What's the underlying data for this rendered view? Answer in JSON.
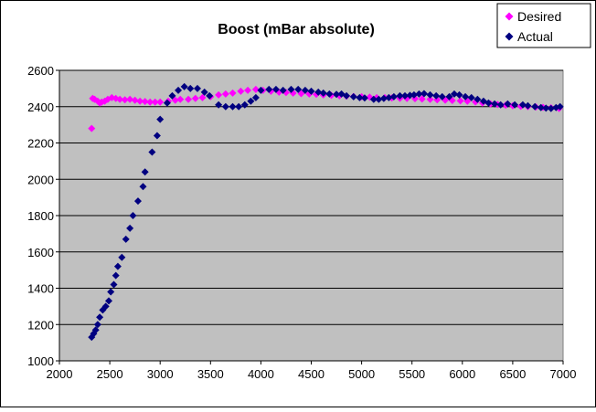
{
  "chart_data": {
    "type": "scatter",
    "title": "Boost (mBar absolute)",
    "xlabel": "",
    "ylabel": "",
    "xlim": [
      2000,
      7000
    ],
    "ylim": [
      1000,
      2600
    ],
    "xticks": [
      2000,
      2500,
      3000,
      3500,
      4000,
      4500,
      5000,
      5500,
      6000,
      6500,
      7000
    ],
    "yticks": [
      1000,
      1200,
      1400,
      1600,
      1800,
      2000,
      2200,
      2400,
      2600
    ],
    "grid": "horizontal",
    "legend_position": "top-right",
    "plot_background": "#c0c0c0",
    "series": [
      {
        "name": "Desired",
        "color": "#ff00ff",
        "marker": "diamond",
        "points": [
          [
            2320,
            2280
          ],
          [
            2330,
            2445
          ],
          [
            2350,
            2440
          ],
          [
            2380,
            2430
          ],
          [
            2400,
            2420
          ],
          [
            2420,
            2425
          ],
          [
            2450,
            2430
          ],
          [
            2480,
            2440
          ],
          [
            2520,
            2450
          ],
          [
            2560,
            2445
          ],
          [
            2600,
            2440
          ],
          [
            2650,
            2438
          ],
          [
            2700,
            2440
          ],
          [
            2750,
            2435
          ],
          [
            2800,
            2430
          ],
          [
            2850,
            2428
          ],
          [
            2900,
            2425
          ],
          [
            2950,
            2425
          ],
          [
            3000,
            2425
          ],
          [
            3080,
            2430
          ],
          [
            3150,
            2435
          ],
          [
            3200,
            2440
          ],
          [
            3280,
            2440
          ],
          [
            3350,
            2445
          ],
          [
            3420,
            2450
          ],
          [
            3500,
            2455
          ],
          [
            3580,
            2465
          ],
          [
            3650,
            2470
          ],
          [
            3720,
            2475
          ],
          [
            3800,
            2485
          ],
          [
            3870,
            2490
          ],
          [
            3950,
            2495
          ],
          [
            4020,
            2490
          ],
          [
            4100,
            2485
          ],
          [
            4180,
            2480
          ],
          [
            4250,
            2478
          ],
          [
            4320,
            2475
          ],
          [
            4400,
            2472
          ],
          [
            4480,
            2470
          ],
          [
            4550,
            2468
          ],
          [
            4620,
            2465
          ],
          [
            4700,
            2462
          ],
          [
            4780,
            2460
          ],
          [
            4850,
            2458
          ],
          [
            4920,
            2456
          ],
          [
            5000,
            2455
          ],
          [
            5080,
            2452
          ],
          [
            5150,
            2450
          ],
          [
            5230,
            2450
          ],
          [
            5300,
            2448
          ],
          [
            5380,
            2446
          ],
          [
            5450,
            2445
          ],
          [
            5530,
            2444
          ],
          [
            5600,
            2442
          ],
          [
            5680,
            2440
          ],
          [
            5750,
            2438
          ],
          [
            5830,
            2436
          ],
          [
            5900,
            2434
          ],
          [
            5980,
            2432
          ],
          [
            6050,
            2430
          ],
          [
            6130,
            2426
          ],
          [
            6200,
            2420
          ],
          [
            6280,
            2415
          ],
          [
            6350,
            2412
          ],
          [
            6430,
            2408
          ],
          [
            6500,
            2405
          ],
          [
            6580,
            2402
          ],
          [
            6650,
            2400
          ],
          [
            6730,
            2398
          ],
          [
            6800,
            2396
          ],
          [
            6880,
            2394
          ],
          [
            6960,
            2390
          ]
        ]
      },
      {
        "name": "Actual",
        "color": "#000080",
        "marker": "diamond",
        "points": [
          [
            2320,
            1130
          ],
          [
            2340,
            1150
          ],
          [
            2360,
            1170
          ],
          [
            2380,
            1200
          ],
          [
            2400,
            1240
          ],
          [
            2430,
            1280
          ],
          [
            2460,
            1300
          ],
          [
            2490,
            1330
          ],
          [
            2510,
            1380
          ],
          [
            2540,
            1420
          ],
          [
            2560,
            1470
          ],
          [
            2580,
            1520
          ],
          [
            2620,
            1570
          ],
          [
            2660,
            1670
          ],
          [
            2700,
            1730
          ],
          [
            2730,
            1800
          ],
          [
            2780,
            1880
          ],
          [
            2830,
            1960
          ],
          [
            2850,
            2040
          ],
          [
            2920,
            2150
          ],
          [
            2970,
            2240
          ],
          [
            3000,
            2330
          ],
          [
            3070,
            2420
          ],
          [
            3120,
            2460
          ],
          [
            3180,
            2490
          ],
          [
            3240,
            2510
          ],
          [
            3300,
            2500
          ],
          [
            3370,
            2500
          ],
          [
            3440,
            2480
          ],
          [
            3490,
            2460
          ],
          [
            3580,
            2410
          ],
          [
            3650,
            2400
          ],
          [
            3720,
            2400
          ],
          [
            3780,
            2400
          ],
          [
            3840,
            2410
          ],
          [
            3900,
            2430
          ],
          [
            3950,
            2450
          ],
          [
            4000,
            2490
          ],
          [
            4080,
            2495
          ],
          [
            4150,
            2495
          ],
          [
            4220,
            2490
          ],
          [
            4300,
            2495
          ],
          [
            4370,
            2495
          ],
          [
            4440,
            2490
          ],
          [
            4500,
            2485
          ],
          [
            4570,
            2480
          ],
          [
            4620,
            2475
          ],
          [
            4680,
            2470
          ],
          [
            4750,
            2468
          ],
          [
            4800,
            2470
          ],
          [
            4850,
            2460
          ],
          [
            4920,
            2455
          ],
          [
            4980,
            2450
          ],
          [
            5030,
            2448
          ],
          [
            5120,
            2440
          ],
          [
            5170,
            2440
          ],
          [
            5220,
            2445
          ],
          [
            5270,
            2450
          ],
          [
            5320,
            2455
          ],
          [
            5380,
            2460
          ],
          [
            5430,
            2460
          ],
          [
            5480,
            2462
          ],
          [
            5520,
            2465
          ],
          [
            5570,
            2470
          ],
          [
            5620,
            2472
          ],
          [
            5680,
            2465
          ],
          [
            5740,
            2460
          ],
          [
            5800,
            2455
          ],
          [
            5870,
            2455
          ],
          [
            5920,
            2470
          ],
          [
            5970,
            2465
          ],
          [
            6030,
            2455
          ],
          [
            6090,
            2450
          ],
          [
            6150,
            2440
          ],
          [
            6210,
            2430
          ],
          [
            6260,
            2420
          ],
          [
            6320,
            2415
          ],
          [
            6380,
            2410
          ],
          [
            6450,
            2415
          ],
          [
            6520,
            2410
          ],
          [
            6600,
            2410
          ],
          [
            6650,
            2405
          ],
          [
            6720,
            2400
          ],
          [
            6780,
            2395
          ],
          [
            6830,
            2392
          ],
          [
            6880,
            2390
          ],
          [
            6930,
            2395
          ],
          [
            6970,
            2400
          ]
        ]
      }
    ]
  }
}
